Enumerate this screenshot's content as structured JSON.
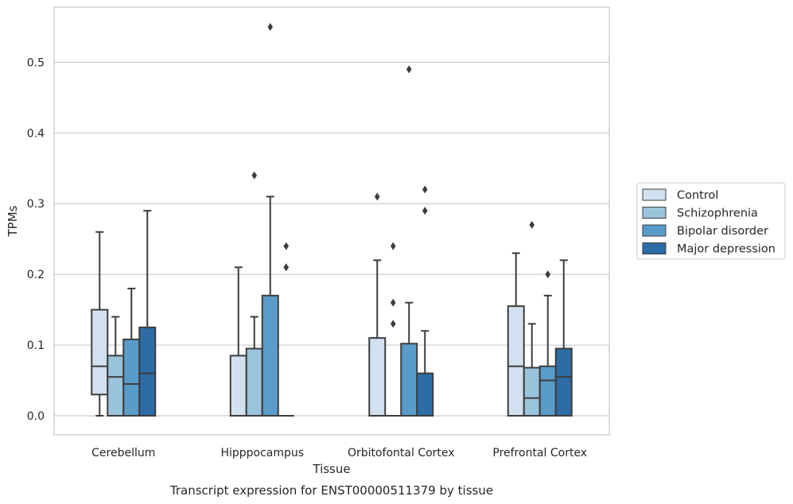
{
  "chart_data": {
    "type": "box",
    "title": "Transcript expression for ENST00000511379 by tissue",
    "xlabel": "Tissue",
    "ylabel": "TPMs",
    "ylim": [
      -0.027,
      0.578
    ],
    "yticks": [
      0.0,
      0.1,
      0.2,
      0.3,
      0.4,
      0.5
    ],
    "ytick_labels": [
      "0.0",
      "0.1",
      "0.2",
      "0.3",
      "0.4",
      "0.5"
    ],
    "grid": "horizontal",
    "legend_position": "right",
    "categories": [
      "Cerebellum",
      "Hipppocampus",
      "Orbitofontal Cortex",
      "Prefrontal Cortex"
    ],
    "series": [
      {
        "name": "Control",
        "color": "#d2e1f0",
        "boxes": [
          {
            "whislo": 0.0,
            "q1": 0.03,
            "med": 0.07,
            "q3": 0.15,
            "whishi": 0.26,
            "fliers": []
          },
          {
            "whislo": 0.0,
            "q1": 0.0,
            "med": 0.0,
            "q3": 0.085,
            "whishi": 0.21,
            "fliers": []
          },
          {
            "whislo": 0.0,
            "q1": 0.0,
            "med": 0.0,
            "q3": 0.11,
            "whishi": 0.22,
            "fliers": [
              0.31
            ]
          },
          {
            "whislo": 0.0,
            "q1": 0.0,
            "med": 0.07,
            "q3": 0.155,
            "whishi": 0.23,
            "fliers": []
          }
        ]
      },
      {
        "name": "Schizophrenia",
        "color": "#9ac3dc",
        "boxes": [
          {
            "whislo": 0.0,
            "q1": 0.0,
            "med": 0.055,
            "q3": 0.085,
            "whishi": 0.14,
            "fliers": []
          },
          {
            "whislo": 0.0,
            "q1": 0.0,
            "med": 0.0,
            "q3": 0.095,
            "whishi": 0.14,
            "fliers": [
              0.34
            ]
          },
          {
            "whislo": 0.0,
            "q1": 0.0,
            "med": 0.0,
            "q3": 0.0,
            "whishi": 0.0,
            "fliers": [
              0.24,
              0.16,
              0.13
            ]
          },
          {
            "whislo": 0.0,
            "q1": 0.0,
            "med": 0.025,
            "q3": 0.068,
            "whishi": 0.13,
            "fliers": [
              0.27
            ]
          }
        ]
      },
      {
        "name": "Bipolar disorder",
        "color": "#5a9cc9",
        "boxes": [
          {
            "whislo": 0.0,
            "q1": 0.0,
            "med": 0.045,
            "q3": 0.108,
            "whishi": 0.18,
            "fliers": []
          },
          {
            "whislo": 0.0,
            "q1": 0.0,
            "med": 0.0,
            "q3": 0.17,
            "whishi": 0.31,
            "fliers": [
              0.55
            ]
          },
          {
            "whislo": 0.0,
            "q1": 0.0,
            "med": 0.0,
            "q3": 0.102,
            "whishi": 0.16,
            "fliers": [
              0.49
            ]
          },
          {
            "whislo": 0.0,
            "q1": 0.0,
            "med": 0.05,
            "q3": 0.07,
            "whishi": 0.17,
            "fliers": [
              0.2
            ]
          }
        ]
      },
      {
        "name": "Major depression",
        "color": "#2d6ca6",
        "boxes": [
          {
            "whislo": 0.0,
            "q1": 0.0,
            "med": 0.06,
            "q3": 0.125,
            "whishi": 0.29,
            "fliers": []
          },
          {
            "whislo": 0.0,
            "q1": 0.0,
            "med": 0.0,
            "q3": 0.0,
            "whishi": 0.0,
            "fliers": [
              0.24,
              0.21
            ]
          },
          {
            "whislo": 0.0,
            "q1": 0.0,
            "med": 0.0,
            "q3": 0.06,
            "whishi": 0.12,
            "fliers": [
              0.32,
              0.29
            ]
          },
          {
            "whislo": 0.0,
            "q1": 0.0,
            "med": 0.055,
            "q3": 0.095,
            "whishi": 0.22,
            "fliers": []
          }
        ]
      }
    ]
  }
}
